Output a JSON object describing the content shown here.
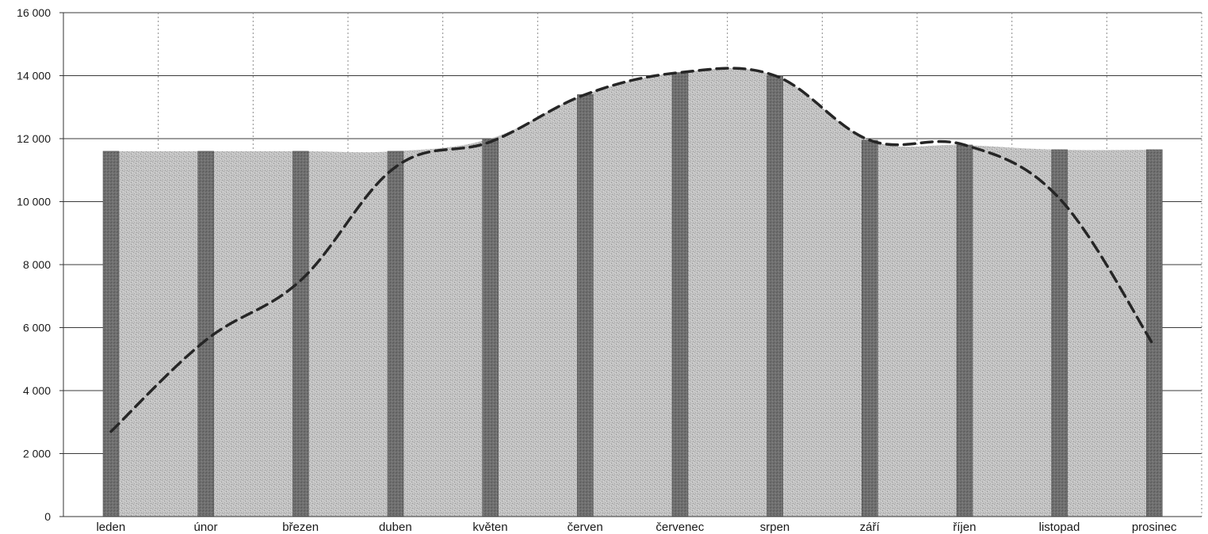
{
  "chart_data": {
    "type": "bar",
    "title": "",
    "xlabel": "",
    "ylabel": "",
    "categories": [
      "leden",
      "únor",
      "březen",
      "duben",
      "květen",
      "červen",
      "červenec",
      "srpen",
      "září",
      "říjen",
      "listopad",
      "prosinec"
    ],
    "ylim": [
      0,
      16000
    ],
    "yticks": [
      0,
      2000,
      4000,
      6000,
      8000,
      10000,
      12000,
      14000,
      16000
    ],
    "ytick_labels": [
      "0",
      "2 000",
      "4 000",
      "6 000",
      "8 000",
      "10 000",
      "12 000",
      "14 000",
      "16 000"
    ],
    "grid": true,
    "legend": "none",
    "series": [
      {
        "type": "area",
        "values": [
          11600,
          11600,
          11600,
          11600,
          12000,
          13400,
          14100,
          14000,
          11950,
          11800,
          11650,
          11650
        ],
        "color": "#bdbdbd"
      },
      {
        "type": "bar",
        "values": [
          11600,
          11600,
          11600,
          11600,
          12000,
          13400,
          14100,
          14000,
          11950,
          11800,
          11650,
          11650
        ],
        "color": "#6f6f6f"
      },
      {
        "type": "line",
        "style": "dashed",
        "values": [
          2700,
          5600,
          7500,
          11100,
          11900,
          13400,
          14100,
          14000,
          11950,
          11800,
          10100,
          5400
        ],
        "color": "#2b2b2b"
      }
    ]
  }
}
